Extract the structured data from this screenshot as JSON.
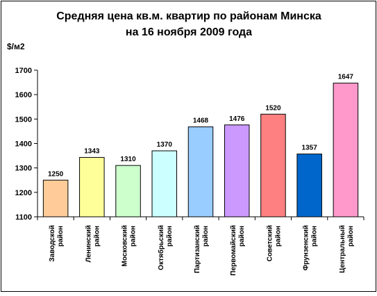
{
  "chart_data": {
    "type": "bar",
    "title_line1": "Средняя цена кв.м. квартир по районам Минска",
    "title_line2": "на 16 ноября 2009 года",
    "ylabel": "$/м2",
    "xlabel": "",
    "ylim": [
      1100,
      1700
    ],
    "yticks": [
      1100,
      1200,
      1300,
      1400,
      1500,
      1600,
      1700
    ],
    "grid": false,
    "categories": [
      {
        "line1": "Заводской",
        "line2": "район"
      },
      {
        "line1": "Ленинский",
        "line2": "район"
      },
      {
        "line1": "Московский",
        "line2": "район"
      },
      {
        "line1": "Октябрьский",
        "line2": "район"
      },
      {
        "line1": "Партизанский",
        "line2": "район"
      },
      {
        "line1": "Первомайский",
        "line2": "район"
      },
      {
        "line1": "Советский",
        "line2": "район"
      },
      {
        "line1": "Фрунзенский",
        "line2": "район"
      },
      {
        "line1": "Центральный",
        "line2": "район"
      }
    ],
    "values": [
      1250,
      1343,
      1310,
      1370,
      1468,
      1476,
      1520,
      1357,
      1647
    ],
    "value_labels": [
      "1250",
      "1343",
      "1310",
      "1370",
      "1468",
      "1476",
      "1520",
      "1357",
      "1647"
    ],
    "colors": [
      "#FFCC99",
      "#FFFF99",
      "#CCFFCC",
      "#CCFFFF",
      "#99CCFF",
      "#CC99FF",
      "#FF8080",
      "#0066CC",
      "#FF99CC"
    ]
  }
}
